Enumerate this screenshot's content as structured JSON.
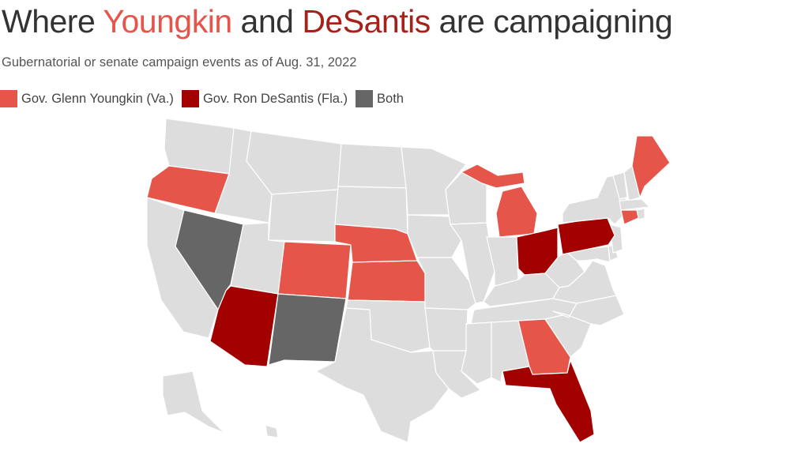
{
  "title": {
    "prefix": "Where ",
    "youngkin": "Youngkin",
    "middle": " and ",
    "desantis": "DeSantis",
    "suffix": " are campaigning"
  },
  "subtitle": "Gubernatorial or senate campaign events as of Aug. 31, 2022",
  "legend": [
    {
      "label": "Gov. Glenn Youngkin (Va.)",
      "color": "#e5554a"
    },
    {
      "label": "Gov. Ron DeSantis (Fla.)",
      "color": "#a30000"
    },
    {
      "label": "Both",
      "color": "#666666"
    }
  ],
  "colors": {
    "youngkin": "#e5554a",
    "desantis": "#a30000",
    "both": "#666666",
    "none": "#dddddd"
  },
  "campaign_states": {
    "youngkin": [
      "Oregon",
      "Colorado",
      "Nebraska",
      "Kansas",
      "Michigan",
      "Georgia",
      "Maine",
      "Connecticut"
    ],
    "desantis": [
      "Arizona",
      "Ohio",
      "Pennsylvania",
      "Florida"
    ],
    "both": [
      "Nevada",
      "New Mexico"
    ]
  }
}
